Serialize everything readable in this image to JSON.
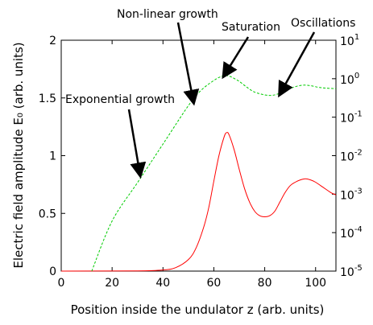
{
  "chart_data": {
    "type": "line",
    "xlabel": "Position inside the undulator z (arb. units)",
    "ylabel": "Electric field amplitude E₀ (arb. units)",
    "xlim": [
      0,
      108
    ],
    "x_ticks": [
      0,
      20,
      40,
      60,
      80,
      100
    ],
    "x_tick_labels": [
      "0",
      "20",
      "40",
      "60",
      "80",
      "100"
    ],
    "y_left": {
      "scale": "linear",
      "range": [
        0,
        2
      ],
      "ticks": [
        0,
        0.5,
        1,
        1.5,
        2
      ],
      "tick_labels": [
        "0",
        "0.5",
        "1",
        "1.5",
        "2"
      ]
    },
    "y_right": {
      "scale": "log",
      "range": [
        1e-05,
        10
      ],
      "ticks": [
        {
          "base": "10",
          "exp": "1",
          "value": 10
        },
        {
          "base": "10",
          "exp": "0",
          "value": 1
        },
        {
          "base": "10",
          "exp": "-1",
          "value": 0.1
        },
        {
          "base": "10",
          "exp": "-2",
          "value": 0.01
        },
        {
          "base": "10",
          "exp": "-3",
          "value": 0.001
        },
        {
          "base": "10",
          "exp": "-4",
          "value": 0.0001
        },
        {
          "base": "10",
          "exp": "-5",
          "value": 1e-05
        }
      ]
    },
    "series": [
      {
        "axis": "left",
        "color": "#ff0000",
        "style": "solid",
        "x": [
          0,
          30,
          40,
          45,
          50,
          53,
          56,
          58,
          60,
          62,
          64,
          65,
          66,
          68,
          70,
          72,
          74,
          76,
          78,
          80,
          82,
          84,
          86,
          88,
          90,
          92,
          94,
          96,
          98,
          100,
          102,
          104,
          106,
          108
        ],
        "y": [
          0,
          0.002,
          0.01,
          0.03,
          0.1,
          0.2,
          0.38,
          0.55,
          0.78,
          1.0,
          1.16,
          1.2,
          1.18,
          1.05,
          0.88,
          0.72,
          0.6,
          0.52,
          0.48,
          0.47,
          0.48,
          0.52,
          0.6,
          0.68,
          0.74,
          0.77,
          0.79,
          0.8,
          0.79,
          0.77,
          0.74,
          0.71,
          0.68,
          0.66
        ]
      },
      {
        "axis": "right",
        "color": "#00cc00",
        "style": "dashed",
        "x": [
          12,
          20,
          30,
          40,
          50,
          55,
          60,
          63,
          65,
          67,
          70,
          73,
          76,
          80,
          83,
          86,
          89,
          92,
          95,
          98,
          101,
          104,
          108
        ],
        "y": [
          1e-05,
          0.0002,
          0.002,
          0.02,
          0.2,
          0.5,
          0.9,
          1.15,
          1.2,
          1.1,
          0.85,
          0.6,
          0.45,
          0.38,
          0.37,
          0.42,
          0.52,
          0.62,
          0.68,
          0.66,
          0.6,
          0.57,
          0.55
        ]
      }
    ],
    "annotations": [
      {
        "text": "Non-linear growth",
        "target": {
          "x": 52,
          "y_right": 0.25
        }
      },
      {
        "text": "Saturation",
        "target": {
          "x": 64,
          "y_right": 1.2
        }
      },
      {
        "text": "Oscillations",
        "target": {
          "x": 86,
          "y_right": 0.4
        }
      },
      {
        "text": "Exponential growth",
        "target": {
          "x": 31,
          "y_right": 0.0032
        }
      }
    ]
  }
}
